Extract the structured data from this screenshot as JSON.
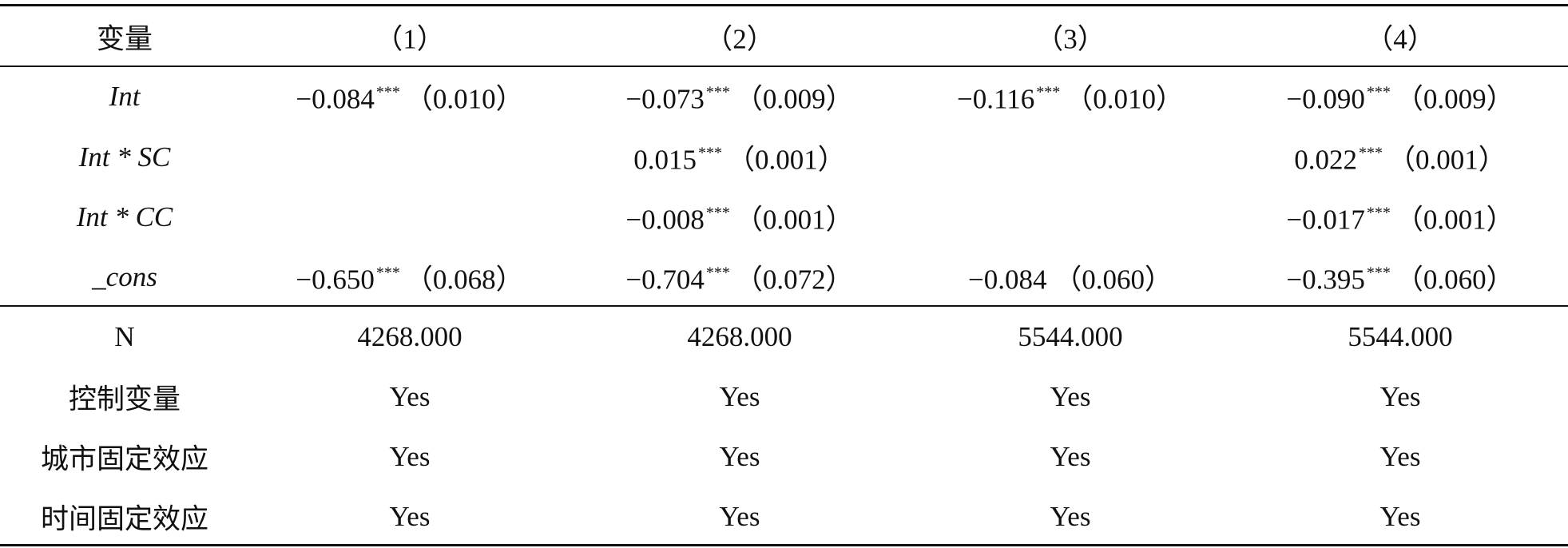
{
  "table": {
    "header": [
      "变量",
      "（1）",
      "（2）",
      "（3）",
      "（4）"
    ],
    "estimates": [
      {
        "label": "Int",
        "cells": [
          {
            "coef": "−0.084",
            "stars": "***",
            "se": "（0.010）"
          },
          {
            "coef": "−0.073",
            "stars": "***",
            "se": "（0.009）"
          },
          {
            "coef": "−0.116",
            "stars": "***",
            "se": "（0.010）"
          },
          {
            "coef": "−0.090",
            "stars": "***",
            "se": "（0.009）"
          }
        ]
      },
      {
        "label": "Int * SC",
        "cells": [
          null,
          {
            "coef": "0.015",
            "stars": "***",
            "se": "（0.001）"
          },
          null,
          {
            "coef": "0.022",
            "stars": "***",
            "se": "（0.001）"
          }
        ]
      },
      {
        "label": "Int * CC",
        "cells": [
          null,
          {
            "coef": "−0.008",
            "stars": "***",
            "se": "（0.001）"
          },
          null,
          {
            "coef": "−0.017",
            "stars": "***",
            "se": "（0.001）"
          }
        ]
      },
      {
        "label": "_cons",
        "cells": [
          {
            "coef": "−0.650",
            "stars": "***",
            "se": "（0.068）"
          },
          {
            "coef": "−0.704",
            "stars": "***",
            "se": "（0.072）"
          },
          {
            "coef": "−0.084",
            "se": "（0.060）"
          },
          {
            "coef": "−0.395",
            "stars": "***",
            "se": "（0.060）"
          }
        ]
      }
    ],
    "stats": [
      {
        "label": "N",
        "cells": [
          "4268.000",
          "4268.000",
          "5544.000",
          "5544.000"
        ]
      },
      {
        "label": "控制变量",
        "cells": [
          "Yes",
          "Yes",
          "Yes",
          "Yes"
        ]
      },
      {
        "label": "城市固定效应",
        "cells": [
          "Yes",
          "Yes",
          "Yes",
          "Yes"
        ]
      },
      {
        "label": "时间固定效应",
        "cells": [
          "Yes",
          "Yes",
          "Yes",
          "Yes"
        ]
      }
    ]
  }
}
